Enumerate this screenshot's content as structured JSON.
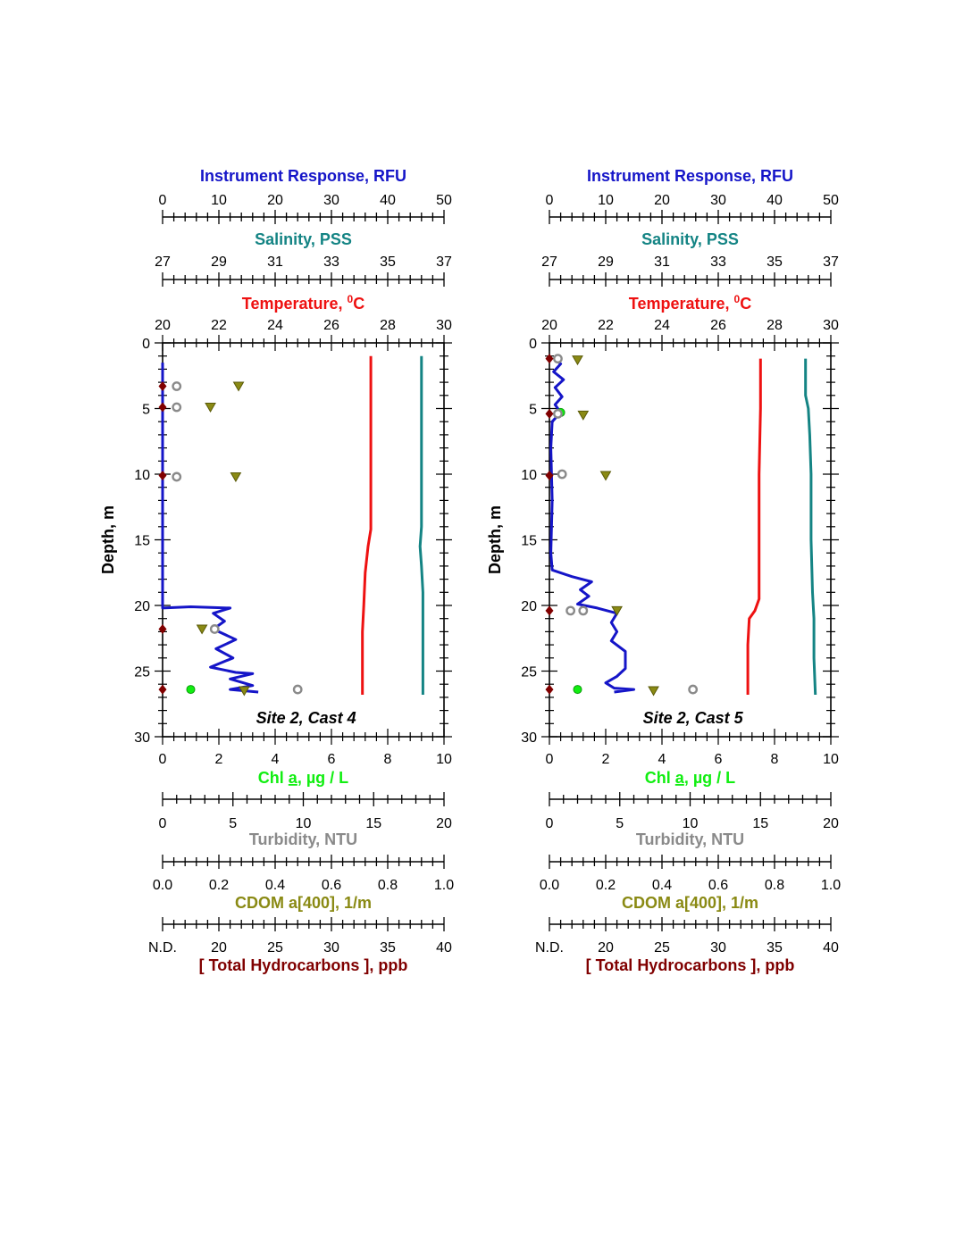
{
  "chart_data": [
    {
      "type": "scatter",
      "annotation": "Site 2, Cast 4",
      "ylabel": "Depth, m",
      "ylim": [
        0,
        30
      ],
      "yticks": [
        "0",
        "5",
        "10",
        "15",
        "20",
        "25",
        "30"
      ],
      "axes": {
        "rfu": {
          "label": "Instrument Response",
          "unit": ", RFU",
          "color": "#1515c8",
          "range": [
            0,
            50
          ],
          "ticks": [
            "0",
            "10",
            "20",
            "30",
            "40",
            "50"
          ]
        },
        "salinity": {
          "label": "Salinity",
          "unit": ", PSS",
          "color": "#148484",
          "range": [
            27,
            37
          ],
          "ticks": [
            "27",
            "29",
            "31",
            "33",
            "35",
            "37"
          ]
        },
        "temperature": {
          "label": "Temperature",
          "unit": ", ",
          "sup": "0",
          "unit2": "C",
          "color": "#ee1111",
          "range": [
            20,
            30
          ],
          "ticks": [
            "20",
            "22",
            "24",
            "26",
            "28",
            "30"
          ]
        },
        "chl": {
          "label_pre": "Chl ",
          "label_a": "a",
          "unit": ", µg / L",
          "color": "#11ee11",
          "range": [
            0,
            10
          ],
          "ticks": [
            "0",
            "2",
            "4",
            "6",
            "8",
            "10"
          ]
        },
        "turbidity": {
          "label": "Turbidity",
          "unit": ", NTU",
          "color": "#8a8a8a",
          "range": [
            0,
            20
          ],
          "ticks": [
            "0",
            "5",
            "10",
            "15",
            "20"
          ]
        },
        "cdom": {
          "label": "CDOM a[400]",
          "unit": ", 1/m",
          "color": "#8a8a14",
          "range": [
            0,
            1
          ],
          "ticks": [
            "0.0",
            "0.2",
            "0.4",
            "0.6",
            "0.8",
            "1.0"
          ]
        },
        "hydrocarbons": {
          "label": "[ Total Hydrocarbons ]",
          "unit": ", ppb",
          "color": "#800000",
          "range": [
            15,
            40
          ],
          "ticks": [
            "N.D.",
            "20",
            "25",
            "30",
            "35",
            "40"
          ]
        }
      },
      "series": [
        {
          "axis": "temperature",
          "kind": "line",
          "color": "#ee1111",
          "points": [
            [
              27.4,
              1
            ],
            [
              27.4,
              5
            ],
            [
              27.4,
              10
            ],
            [
              27.4,
              14.2
            ],
            [
              27.3,
              15.5
            ],
            [
              27.2,
              17.5
            ],
            [
              27.15,
              20
            ],
            [
              27.1,
              22
            ],
            [
              27.1,
              25
            ],
            [
              27.1,
              26.8
            ]
          ]
        },
        {
          "axis": "salinity",
          "kind": "line",
          "color": "#148484",
          "points": [
            [
              36.2,
              1
            ],
            [
              36.2,
              5
            ],
            [
              36.2,
              10
            ],
            [
              36.2,
              14
            ],
            [
              36.15,
              15.5
            ],
            [
              36.2,
              17
            ],
            [
              36.25,
              19
            ],
            [
              36.25,
              22
            ],
            [
              36.25,
              25
            ],
            [
              36.25,
              26.8
            ]
          ]
        },
        {
          "axis": "chl",
          "kind": "line",
          "color": "#1515c8",
          "points": [
            [
              0,
              1.5
            ],
            [
              0,
              5
            ],
            [
              0,
              10
            ],
            [
              0,
              15
            ],
            [
              0,
              20.2
            ],
            [
              1,
              20.1
            ],
            [
              2.4,
              20.2
            ],
            [
              1.8,
              20.6
            ],
            [
              2.2,
              21.2
            ],
            [
              1.8,
              21.8
            ],
            [
              2.6,
              22.6
            ],
            [
              1.9,
              23.3
            ],
            [
              2.5,
              24.0
            ],
            [
              1.7,
              24.7
            ],
            [
              2.6,
              25.1
            ],
            [
              3.2,
              25.2
            ],
            [
              2.4,
              25.6
            ],
            [
              3.2,
              26.1
            ],
            [
              2.4,
              26.4
            ],
            [
              3.4,
              26.6
            ]
          ]
        },
        {
          "axis": "chl",
          "kind": "points",
          "marker": "circle",
          "color": "#11ee11",
          "points": [
            [
              0.5,
              3.3
            ],
            [
              0.5,
              4.9
            ],
            [
              0.5,
              10.2
            ],
            [
              1.0,
              26.4
            ]
          ]
        },
        {
          "axis": "turbidity",
          "kind": "points",
          "marker": "hexring",
          "color": "#8a8a8a",
          "points": [
            [
              1,
              3.3
            ],
            [
              1,
              4.9
            ],
            [
              1,
              10.2
            ],
            [
              3.7,
              21.8
            ],
            [
              9.6,
              26.4
            ]
          ]
        },
        {
          "axis": "cdom",
          "kind": "points",
          "marker": "triangle-down",
          "color": "#8a8a14",
          "points": [
            [
              0.27,
              3.3
            ],
            [
              0.17,
              4.9
            ],
            [
              0.26,
              10.2
            ],
            [
              0.14,
              21.8
            ],
            [
              0.29,
              26.5
            ]
          ]
        },
        {
          "axis": "hydrocarbons",
          "kind": "points",
          "marker": "diamond",
          "color": "#800000",
          "points": [
            [
              15,
              3.3
            ],
            [
              15,
              4.9
            ],
            [
              15,
              10.1
            ],
            [
              15,
              21.8
            ],
            [
              15,
              26.4
            ]
          ]
        }
      ]
    },
    {
      "type": "scatter",
      "annotation": "Site 2, Cast 5",
      "ylabel": "Depth, m",
      "ylim": [
        0,
        30
      ],
      "yticks": [
        "0",
        "5",
        "10",
        "15",
        "20",
        "25",
        "30"
      ],
      "axes": {
        "rfu": {
          "label": "Instrument Response",
          "unit": ", RFU",
          "color": "#1515c8",
          "range": [
            0,
            50
          ],
          "ticks": [
            "0",
            "10",
            "20",
            "30",
            "40",
            "50"
          ]
        },
        "salinity": {
          "label": "Salinity",
          "unit": ", PSS",
          "color": "#148484",
          "range": [
            27,
            37
          ],
          "ticks": [
            "27",
            "29",
            "31",
            "33",
            "35",
            "37"
          ]
        },
        "temperature": {
          "label": "Temperature",
          "unit": ", ",
          "sup": "0",
          "unit2": "C",
          "color": "#ee1111",
          "range": [
            20,
            30
          ],
          "ticks": [
            "20",
            "22",
            "24",
            "26",
            "28",
            "30"
          ]
        },
        "chl": {
          "label_pre": "Chl ",
          "label_a": "a",
          "unit": ", µg / L",
          "color": "#11ee11",
          "range": [
            0,
            10
          ],
          "ticks": [
            "0",
            "2",
            "4",
            "6",
            "8",
            "10"
          ]
        },
        "turbidity": {
          "label": "Turbidity",
          "unit": ", NTU",
          "color": "#8a8a8a",
          "range": [
            0,
            20
          ],
          "ticks": [
            "0",
            "5",
            "10",
            "15",
            "20"
          ]
        },
        "cdom": {
          "label": "CDOM a[400]",
          "unit": ", 1/m",
          "color": "#8a8a14",
          "range": [
            0,
            1
          ],
          "ticks": [
            "0.0",
            "0.2",
            "0.4",
            "0.6",
            "0.8",
            "1.0"
          ]
        },
        "hydrocarbons": {
          "label": "[ Total Hydrocarbons ]",
          "unit": ", ppb",
          "color": "#800000",
          "range": [
            15,
            40
          ],
          "ticks": [
            "N.D.",
            "20",
            "25",
            "30",
            "35",
            "40"
          ]
        }
      },
      "series": [
        {
          "axis": "temperature",
          "kind": "line",
          "color": "#ee1111",
          "points": [
            [
              27.5,
              1.2
            ],
            [
              27.5,
              5
            ],
            [
              27.45,
              10
            ],
            [
              27.45,
              15
            ],
            [
              27.45,
              19.5
            ],
            [
              27.3,
              20.4
            ],
            [
              27.1,
              21
            ],
            [
              27.05,
              23
            ],
            [
              27.05,
              25
            ],
            [
              27.05,
              26.8
            ]
          ]
        },
        {
          "axis": "salinity",
          "kind": "line",
          "color": "#148484",
          "points": [
            [
              36.1,
              1.2
            ],
            [
              36.1,
              4
            ],
            [
              36.2,
              5
            ],
            [
              36.25,
              7
            ],
            [
              36.3,
              10
            ],
            [
              36.3,
              15
            ],
            [
              36.35,
              19
            ],
            [
              36.4,
              21
            ],
            [
              36.4,
              24
            ],
            [
              36.45,
              26.8
            ]
          ]
        },
        {
          "axis": "chl",
          "kind": "line",
          "color": "#1515c8",
          "points": [
            [
              0.2,
              1.2
            ],
            [
              0.4,
              1.6
            ],
            [
              0.15,
              2.2
            ],
            [
              0.5,
              2.8
            ],
            [
              0.2,
              3.4
            ],
            [
              0.45,
              4.1
            ],
            [
              0.2,
              4.7
            ],
            [
              0.4,
              5.3
            ],
            [
              0.1,
              6
            ],
            [
              0.05,
              8
            ],
            [
              0.1,
              12
            ],
            [
              0.05,
              16
            ],
            [
              0.1,
              17.3
            ],
            [
              0.8,
              17.8
            ],
            [
              1.5,
              18.2
            ],
            [
              1.1,
              18.8
            ],
            [
              1.4,
              19.3
            ],
            [
              1.0,
              19.9
            ],
            [
              1.7,
              20.2
            ],
            [
              2.4,
              20.6
            ],
            [
              2.2,
              21.3
            ],
            [
              2.4,
              22
            ],
            [
              2.2,
              22.7
            ],
            [
              2.7,
              23.5
            ],
            [
              2.7,
              24.8
            ],
            [
              2.4,
              25.4
            ],
            [
              2.0,
              25.9
            ],
            [
              2.3,
              26.3
            ],
            [
              3.0,
              26.4
            ],
            [
              2.3,
              26.6
            ]
          ]
        },
        {
          "axis": "chl",
          "kind": "points",
          "marker": "circle",
          "color": "#11ee11",
          "points": [
            [
              0.3,
              1.2
            ],
            [
              0.4,
              5.3
            ],
            [
              0.45,
              10
            ],
            [
              1.2,
              20.4
            ],
            [
              1.0,
              26.4
            ]
          ]
        },
        {
          "axis": "turbidity",
          "kind": "points",
          "marker": "hexring",
          "color": "#8a8a8a",
          "points": [
            [
              0.6,
              1.2
            ],
            [
              0.6,
              5.4
            ],
            [
              0.9,
              10
            ],
            [
              1.5,
              20.4
            ],
            [
              2.4,
              20.4
            ],
            [
              10.2,
              26.4
            ]
          ]
        },
        {
          "axis": "cdom",
          "kind": "points",
          "marker": "triangle-down",
          "color": "#8a8a14",
          "points": [
            [
              0.1,
              1.3
            ],
            [
              0.12,
              5.5
            ],
            [
              0.2,
              10.1
            ],
            [
              0.24,
              20.4
            ],
            [
              0.37,
              26.5
            ]
          ]
        },
        {
          "axis": "hydrocarbons",
          "kind": "points",
          "marker": "diamond",
          "color": "#800000",
          "points": [
            [
              15,
              1.2
            ],
            [
              15,
              5.4
            ],
            [
              15,
              10.1
            ],
            [
              15,
              20.4
            ],
            [
              15,
              26.4
            ]
          ]
        }
      ]
    }
  ]
}
